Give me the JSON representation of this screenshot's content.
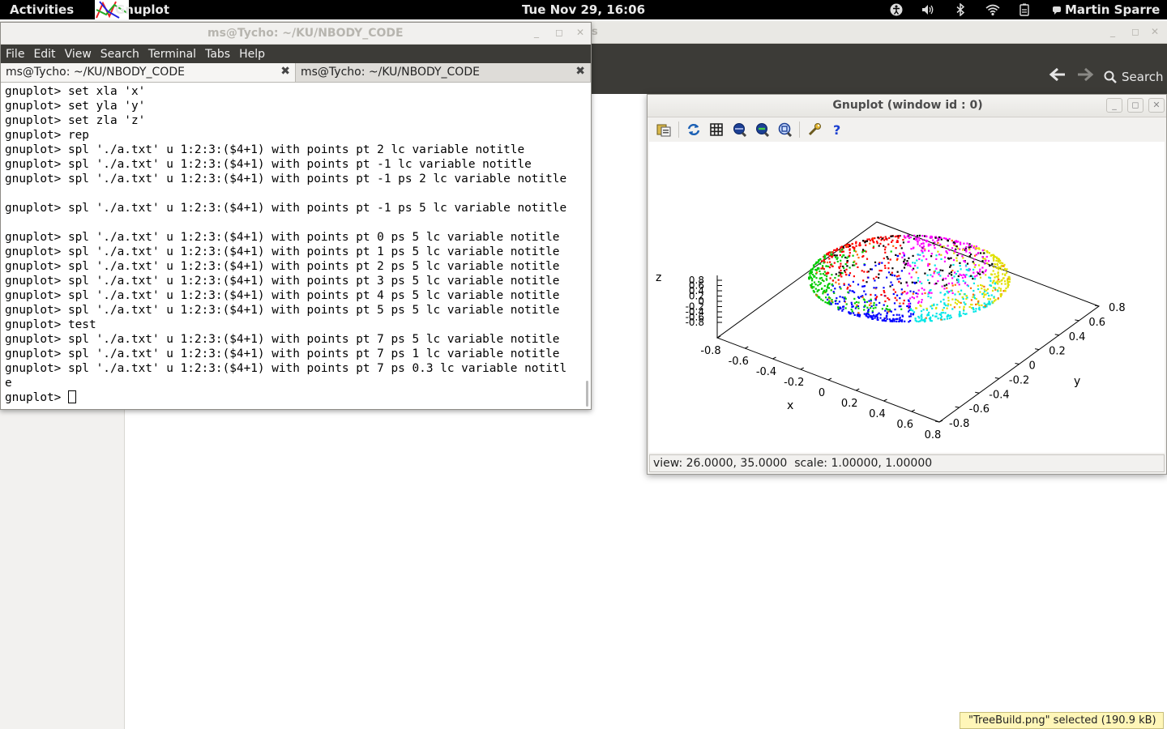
{
  "topbar": {
    "activities": "Activities",
    "app_name": "Gnuplot",
    "clock": "Tue Nov 29, 16:06",
    "user": "Martin Sparre",
    "tray_icons": [
      "accessibility-icon",
      "volume-icon",
      "bluetooth-icon",
      "wifi-icon",
      "battery-icon"
    ]
  },
  "file_manager": {
    "title_fragment": "s",
    "search_label": "Search",
    "tooltip": "\"TreeBuild.png\" selected (190.9 kB)"
  },
  "terminal": {
    "title": "ms@Tycho: ~/KU/NBODY_CODE",
    "menu": [
      "File",
      "Edit",
      "View",
      "Search",
      "Terminal",
      "Tabs",
      "Help"
    ],
    "tabs": [
      {
        "label": "ms@Tycho: ~/KU/NBODY_CODE",
        "active": true
      },
      {
        "label": "ms@Tycho: ~/KU/NBODY_CODE",
        "active": false
      }
    ],
    "lines": [
      "gnuplot> set xla 'x'",
      "gnuplot> set yla 'y'",
      "gnuplot> set zla 'z'",
      "gnuplot> rep",
      "gnuplot> spl './a.txt' u 1:2:3:($4+1) with points pt 2 lc variable notitle",
      "gnuplot> spl './a.txt' u 1:2:3:($4+1) with points pt -1 lc variable notitle",
      "gnuplot> spl './a.txt' u 1:2:3:($4+1) with points pt -1 ps 2 lc variable notitle",
      "",
      "gnuplot> spl './a.txt' u 1:2:3:($4+1) with points pt -1 ps 5 lc variable notitle",
      "",
      "gnuplot> spl './a.txt' u 1:2:3:($4+1) with points pt 0 ps 5 lc variable notitle",
      "gnuplot> spl './a.txt' u 1:2:3:($4+1) with points pt 1 ps 5 lc variable notitle",
      "gnuplot> spl './a.txt' u 1:2:3:($4+1) with points pt 2 ps 5 lc variable notitle",
      "gnuplot> spl './a.txt' u 1:2:3:($4+1) with points pt 3 ps 5 lc variable notitle",
      "gnuplot> spl './a.txt' u 1:2:3:($4+1) with points pt 4 ps 5 lc variable notitle",
      "gnuplot> spl './a.txt' u 1:2:3:($4+1) with points pt 5 ps 5 lc variable notitle",
      "gnuplot> test",
      "gnuplot> spl './a.txt' u 1:2:3:($4+1) with points pt 7 ps 5 lc variable notitle",
      "gnuplot> spl './a.txt' u 1:2:3:($4+1) with points pt 7 ps 1 lc variable notitle",
      "gnuplot> spl './a.txt' u 1:2:3:($4+1) with points pt 7 ps 0.3 lc variable notitl",
      "e"
    ],
    "prompt": "gnuplot> "
  },
  "gnuplot_window": {
    "title": "Gnuplot (window id : 0)",
    "toolbar": [
      "copy-to-clipboard-icon",
      "replot-icon",
      "grid-icon",
      "zoom-previous-icon",
      "zoom-next-icon",
      "autoscale-icon",
      "config-icon",
      "help-icon"
    ],
    "status": "view: 26.0000, 35.0000  scale: 1.00000, 1.00000"
  },
  "chart_data": {
    "type": "scatter",
    "title": "",
    "xlabel": "x",
    "ylabel": "y",
    "zlabel": "z",
    "view": {
      "rot_x": 26,
      "rot_z": 35
    },
    "x_ticks": [
      "-0.8",
      "-0.6",
      "-0.4",
      "-0.2",
      "0",
      "0.2",
      "0.4",
      "0.6",
      "0.8"
    ],
    "y_ticks": [
      "-0.8",
      "-0.6",
      "-0.4",
      "-0.2",
      "0",
      "0.2",
      "0.4",
      "0.6",
      "0.8"
    ],
    "z_ticks": [
      "-0.8",
      "-0.6",
      "-0.4",
      "-0.2",
      "0",
      "0.2",
      "0.4",
      "0.6",
      "0.8"
    ],
    "xlim": [
      -0.8,
      0.8
    ],
    "ylim": [
      -0.8,
      0.8
    ],
    "zlim": [
      -0.8,
      0.8
    ],
    "shape": "sphere of points, radius ~0.8, colored by variable (column 4 + 1)",
    "group_colors": [
      "#ff0000",
      "#00cc00",
      "#0000ff",
      "#ff00ff",
      "#00e6e6",
      "#e0e000",
      "#000000",
      "#ff6a00"
    ],
    "legend": "none"
  }
}
